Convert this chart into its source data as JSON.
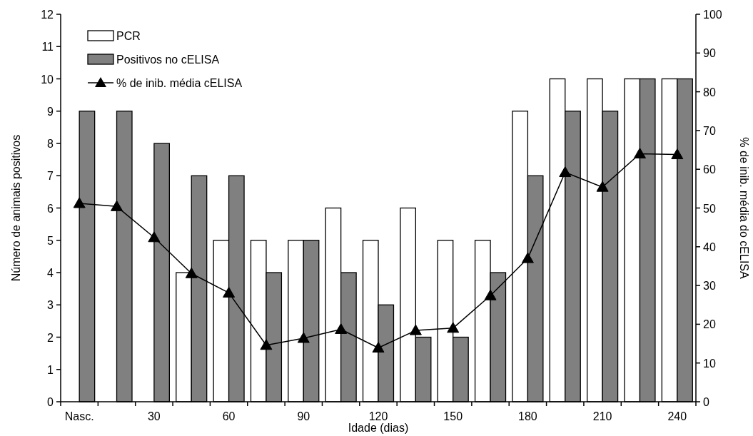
{
  "chart_data": {
    "type": "bar",
    "xlabel": "Idade (dias)",
    "ylabel": "Número de animais positivos",
    "y2label": "% de inib. média do cELISA",
    "categories": [
      "Nasc.",
      null,
      "30",
      null,
      "60",
      null,
      "90",
      null,
      "120",
      null,
      "150",
      null,
      "180",
      null,
      "210",
      null,
      "240"
    ],
    "series": [
      {
        "name": "PCR",
        "color": "#ffffff",
        "values": [
          0,
          0,
          0,
          4,
          5,
          5,
          5,
          6,
          5,
          6,
          5,
          5,
          9,
          10,
          10,
          10,
          10
        ]
      },
      {
        "name": "Positivos no cELISA",
        "color": "#808080",
        "values": [
          9,
          9,
          8,
          7,
          7,
          4,
          5,
          4,
          3,
          2,
          2,
          4,
          7,
          9,
          9,
          10,
          10
        ]
      },
      {
        "name": "% de inib. média cELISA",
        "type": "line",
        "axis": "y2",
        "color": "#000000",
        "marker": "triangle",
        "values": [
          51.2,
          50.4,
          42.4,
          33.1,
          28.1,
          14.6,
          16.4,
          18.7,
          13.9,
          18.4,
          19.0,
          27.4,
          37.0,
          59.2,
          55.4,
          64.0,
          63.8
        ]
      }
    ],
    "ylim": [
      0,
      12
    ],
    "yticks": [
      0,
      1,
      2,
      3,
      4,
      5,
      6,
      7,
      8,
      9,
      10,
      11,
      12
    ],
    "y2lim": [
      0,
      100
    ],
    "y2ticks": [
      0,
      10,
      20,
      30,
      40,
      50,
      60,
      70,
      80,
      90,
      100
    ],
    "grid": false,
    "legend": "top left"
  }
}
